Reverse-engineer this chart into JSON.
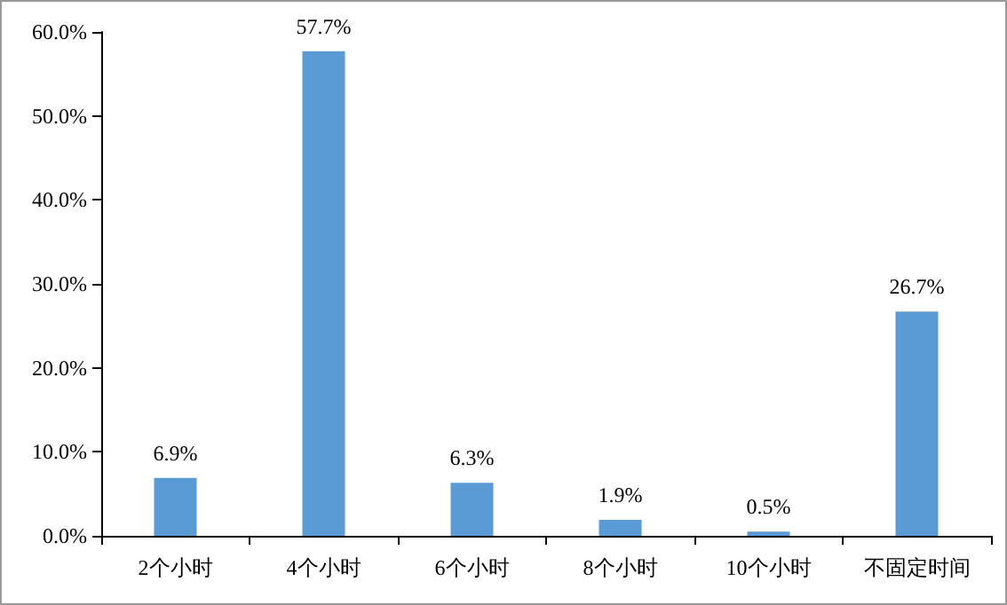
{
  "chart_data": {
    "type": "bar",
    "categories": [
      "2个小时",
      "4个小时",
      "6个小时",
      "8个小时",
      "10个小时",
      "不固定时间"
    ],
    "values": [
      6.9,
      57.7,
      6.3,
      1.9,
      0.5,
      26.7
    ],
    "color": "#5b9bd5",
    "ylim": [
      0,
      60
    ],
    "yticks": [
      {
        "value": 0,
        "label": "0.0%"
      },
      {
        "value": 10,
        "label": "10.0%"
      },
      {
        "value": 20,
        "label": "20.0%"
      },
      {
        "value": 30,
        "label": "30.0%"
      },
      {
        "value": 40,
        "label": "40.0%"
      },
      {
        "value": 50,
        "label": "50.0%"
      },
      {
        "value": 60,
        "label": "60.0%"
      }
    ],
    "value_labels": [
      "6.9%",
      "57.7%",
      "6.3%",
      "1.9%",
      "0.5%",
      "26.7%"
    ],
    "grid": false
  }
}
